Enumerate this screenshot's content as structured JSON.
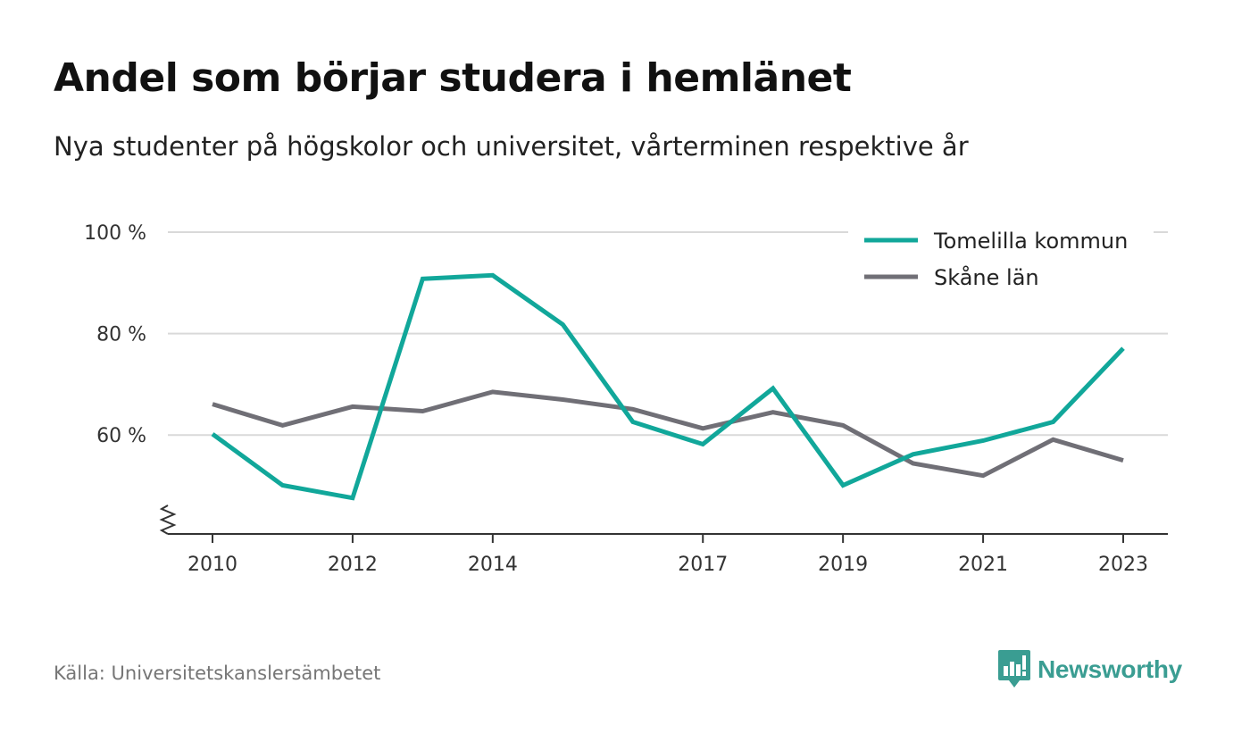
{
  "colors": {
    "series_1": "#11a79a",
    "series_2": "#706f76",
    "grid": "#d9d9d9",
    "axis": "#333333",
    "brand": "#3a9d92"
  },
  "chart_data": {
    "type": "line",
    "title": "Andel som börjar studera i hemlänet",
    "subtitle": "Nya studenter på högskolor och universitet, vårterminen respektive år",
    "xlabel": "",
    "ylabel": "",
    "x": [
      2010,
      2011,
      2012,
      2013,
      2014,
      2015,
      2016,
      2017,
      2018,
      2019,
      2020,
      2021,
      2022,
      2023
    ],
    "x_tick_labels": [
      "2010",
      "2012",
      "2014",
      "2017",
      "2019",
      "2021",
      "2023"
    ],
    "y_tick_labels": [
      "100 %",
      "80 %",
      "60 %"
    ],
    "y_ticks": [
      100,
      80,
      60
    ],
    "ylim": [
      40.5,
      100
    ],
    "y_axis_break": true,
    "grid": true,
    "legend_position": "top-right",
    "series": [
      {
        "name": "Tomelilla kommun",
        "color": "#11a79a",
        "values": [
          60.2,
          50.1,
          47.6,
          90.8,
          91.5,
          81.8,
          62.6,
          58.2,
          69.2,
          50.1,
          56.2,
          58.9,
          62.6,
          77.1
        ]
      },
      {
        "name": "Skåne län",
        "color": "#706f76",
        "values": [
          66.1,
          61.9,
          65.6,
          64.7,
          68.5,
          67.0,
          65.1,
          61.3,
          64.5,
          61.9,
          54.4,
          52.0,
          59.1,
          55.0
        ]
      }
    ]
  },
  "source_text": "Källa: Universitetskanslersämbetet",
  "brand": {
    "name": "Newsworthy",
    "icon": "newsworthy-logo-icon"
  }
}
